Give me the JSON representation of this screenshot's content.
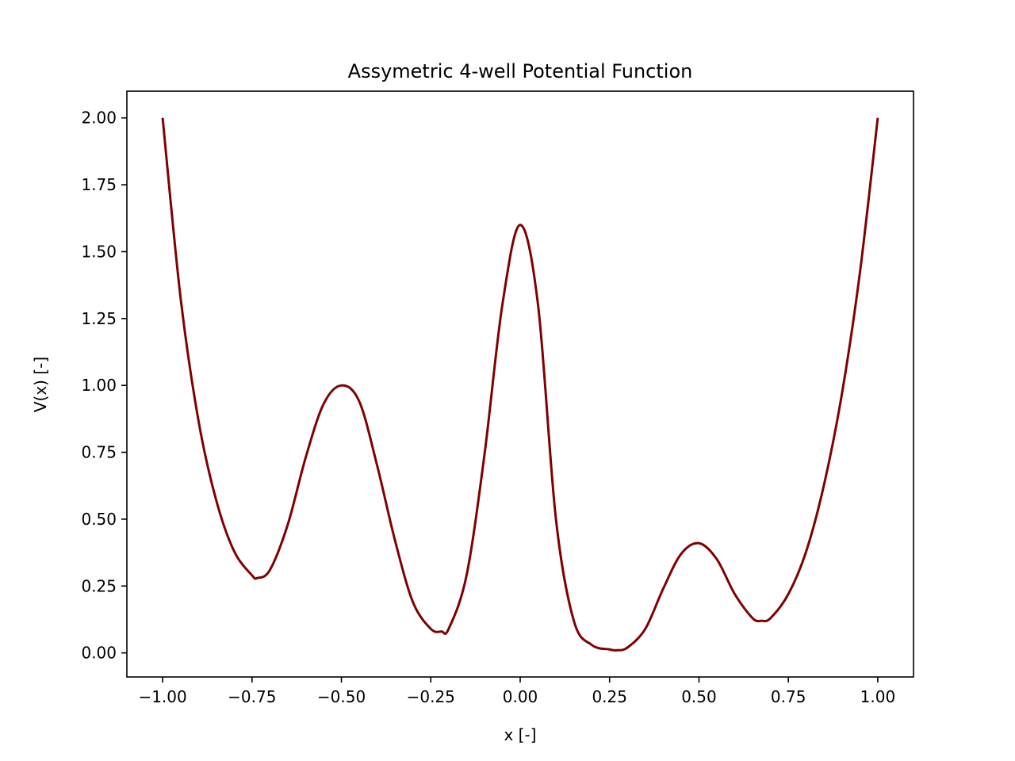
{
  "chart_data": {
    "type": "line",
    "title": "Assymetric 4-well Potential Function",
    "xlabel": "x [-]",
    "ylabel": "V(x) [-]",
    "xlim": [
      -1.1,
      1.1
    ],
    "ylim": [
      -0.09,
      2.1
    ],
    "x_ticks": [
      -1.0,
      -0.75,
      -0.5,
      -0.25,
      0.0,
      0.25,
      0.5,
      0.75,
      1.0
    ],
    "x_tick_labels": [
      "−1.00",
      "−0.75",
      "−0.50",
      "−0.25",
      "0.00",
      "0.25",
      "0.50",
      "0.75",
      "1.00"
    ],
    "y_ticks": [
      0.0,
      0.25,
      0.5,
      0.75,
      1.0,
      1.25,
      1.5,
      1.75,
      2.0
    ],
    "y_tick_labels": [
      "0.00",
      "0.25",
      "0.50",
      "0.75",
      "1.00",
      "1.25",
      "1.50",
      "1.75",
      "2.00"
    ],
    "grid": false,
    "series": [
      {
        "color": "#800000",
        "x": [
          -1.0,
          -0.95,
          -0.9,
          -0.85,
          -0.8,
          -0.75,
          -0.735,
          -0.7,
          -0.65,
          -0.6,
          -0.55,
          -0.5,
          -0.45,
          -0.4,
          -0.35,
          -0.3,
          -0.25,
          -0.22,
          -0.2,
          -0.15,
          -0.1,
          -0.05,
          0.0,
          0.05,
          0.1,
          0.15,
          0.2,
          0.25,
          0.27,
          0.3,
          0.35,
          0.4,
          0.45,
          0.5,
          0.55,
          0.6,
          0.65,
          0.675,
          0.7,
          0.75,
          0.8,
          0.85,
          0.9,
          0.95,
          1.0
        ],
        "y": [
          2.0,
          1.33,
          0.87,
          0.57,
          0.38,
          0.29,
          0.28,
          0.31,
          0.48,
          0.73,
          0.93,
          1.0,
          0.94,
          0.7,
          0.42,
          0.19,
          0.09,
          0.08,
          0.09,
          0.29,
          0.74,
          1.3,
          1.6,
          1.3,
          0.5,
          0.12,
          0.03,
          0.013,
          0.01,
          0.02,
          0.09,
          0.24,
          0.37,
          0.41,
          0.35,
          0.22,
          0.13,
          0.12,
          0.13,
          0.22,
          0.38,
          0.63,
          0.97,
          1.42,
          2.0
        ]
      }
    ]
  }
}
